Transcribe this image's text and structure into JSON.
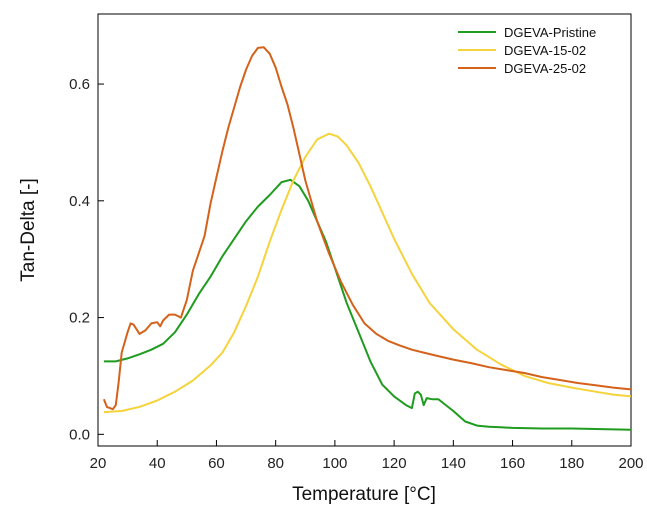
{
  "chart_data": {
    "type": "line",
    "title": "",
    "xlabel": "Temperature [°C]",
    "ylabel": "Tan-Delta [-]",
    "xlim": [
      20,
      200
    ],
    "ylim": [
      -0.02,
      0.72
    ],
    "xticks": [
      20,
      40,
      60,
      80,
      100,
      120,
      140,
      160,
      180,
      200
    ],
    "yticks": [
      0.0,
      0.2,
      0.4,
      0.6
    ],
    "ytick_labels": [
      "0.0",
      "0.2",
      "0.4",
      "0.6"
    ],
    "grid": false,
    "legend_position": "top-right",
    "series": [
      {
        "name": "DGEVA-Pristine",
        "color": "#1f9b1f",
        "points": [
          [
            22,
            0.125
          ],
          [
            26,
            0.125
          ],
          [
            30,
            0.13
          ],
          [
            34,
            0.137
          ],
          [
            38,
            0.145
          ],
          [
            42,
            0.155
          ],
          [
            46,
            0.175
          ],
          [
            50,
            0.205
          ],
          [
            54,
            0.24
          ],
          [
            58,
            0.27
          ],
          [
            62,
            0.305
          ],
          [
            66,
            0.335
          ],
          [
            70,
            0.365
          ],
          [
            74,
            0.39
          ],
          [
            78,
            0.41
          ],
          [
            82,
            0.432
          ],
          [
            85,
            0.436
          ],
          [
            88,
            0.425
          ],
          [
            91,
            0.4
          ],
          [
            94,
            0.365
          ],
          [
            97,
            0.33
          ],
          [
            100,
            0.285
          ],
          [
            104,
            0.225
          ],
          [
            108,
            0.175
          ],
          [
            112,
            0.125
          ],
          [
            116,
            0.085
          ],
          [
            120,
            0.065
          ],
          [
            124,
            0.05
          ],
          [
            126,
            0.045
          ],
          [
            127,
            0.07
          ],
          [
            128,
            0.073
          ],
          [
            129,
            0.068
          ],
          [
            130,
            0.05
          ],
          [
            131,
            0.062
          ],
          [
            133,
            0.06
          ],
          [
            135,
            0.06
          ],
          [
            137,
            0.052
          ],
          [
            140,
            0.04
          ],
          [
            144,
            0.022
          ],
          [
            148,
            0.015
          ],
          [
            152,
            0.013
          ],
          [
            156,
            0.012
          ],
          [
            160,
            0.011
          ],
          [
            170,
            0.01
          ],
          [
            180,
            0.01
          ],
          [
            190,
            0.009
          ],
          [
            200,
            0.008
          ]
        ]
      },
      {
        "name": "DGEVA-15-02",
        "color": "#f5d33c",
        "points": [
          [
            22,
            0.038
          ],
          [
            28,
            0.04
          ],
          [
            34,
            0.047
          ],
          [
            40,
            0.058
          ],
          [
            46,
            0.073
          ],
          [
            52,
            0.092
          ],
          [
            58,
            0.118
          ],
          [
            62,
            0.14
          ],
          [
            66,
            0.175
          ],
          [
            70,
            0.22
          ],
          [
            74,
            0.27
          ],
          [
            78,
            0.33
          ],
          [
            82,
            0.385
          ],
          [
            86,
            0.435
          ],
          [
            90,
            0.475
          ],
          [
            94,
            0.505
          ],
          [
            98,
            0.515
          ],
          [
            101,
            0.51
          ],
          [
            104,
            0.495
          ],
          [
            108,
            0.465
          ],
          [
            112,
            0.425
          ],
          [
            116,
            0.38
          ],
          [
            120,
            0.335
          ],
          [
            126,
            0.275
          ],
          [
            132,
            0.225
          ],
          [
            140,
            0.18
          ],
          [
            148,
            0.145
          ],
          [
            156,
            0.12
          ],
          [
            164,
            0.1
          ],
          [
            172,
            0.088
          ],
          [
            180,
            0.08
          ],
          [
            188,
            0.073
          ],
          [
            194,
            0.068
          ],
          [
            200,
            0.065
          ]
        ]
      },
      {
        "name": "DGEVA-25-02",
        "color": "#d4621b",
        "points": [
          [
            22,
            0.06
          ],
          [
            23,
            0.047
          ],
          [
            25,
            0.043
          ],
          [
            26,
            0.05
          ],
          [
            27,
            0.09
          ],
          [
            28,
            0.14
          ],
          [
            30,
            0.175
          ],
          [
            31,
            0.19
          ],
          [
            32,
            0.188
          ],
          [
            33,
            0.18
          ],
          [
            34,
            0.172
          ],
          [
            36,
            0.178
          ],
          [
            38,
            0.19
          ],
          [
            40,
            0.192
          ],
          [
            41,
            0.185
          ],
          [
            42,
            0.195
          ],
          [
            44,
            0.205
          ],
          [
            46,
            0.205
          ],
          [
            48,
            0.2
          ],
          [
            50,
            0.23
          ],
          [
            52,
            0.28
          ],
          [
            54,
            0.31
          ],
          [
            56,
            0.34
          ],
          [
            58,
            0.395
          ],
          [
            60,
            0.44
          ],
          [
            62,
            0.485
          ],
          [
            64,
            0.525
          ],
          [
            66,
            0.56
          ],
          [
            68,
            0.595
          ],
          [
            70,
            0.625
          ],
          [
            72,
            0.648
          ],
          [
            74,
            0.662
          ],
          [
            76,
            0.663
          ],
          [
            78,
            0.652
          ],
          [
            80,
            0.628
          ],
          [
            82,
            0.595
          ],
          [
            84,
            0.565
          ],
          [
            86,
            0.525
          ],
          [
            88,
            0.48
          ],
          [
            90,
            0.435
          ],
          [
            94,
            0.365
          ],
          [
            98,
            0.31
          ],
          [
            102,
            0.262
          ],
          [
            106,
            0.222
          ],
          [
            110,
            0.19
          ],
          [
            114,
            0.172
          ],
          [
            118,
            0.16
          ],
          [
            122,
            0.152
          ],
          [
            126,
            0.145
          ],
          [
            130,
            0.14
          ],
          [
            134,
            0.135
          ],
          [
            140,
            0.128
          ],
          [
            146,
            0.122
          ],
          [
            152,
            0.115
          ],
          [
            158,
            0.11
          ],
          [
            164,
            0.105
          ],
          [
            170,
            0.098
          ],
          [
            176,
            0.093
          ],
          [
            182,
            0.088
          ],
          [
            188,
            0.084
          ],
          [
            194,
            0.08
          ],
          [
            200,
            0.077
          ]
        ]
      }
    ]
  }
}
